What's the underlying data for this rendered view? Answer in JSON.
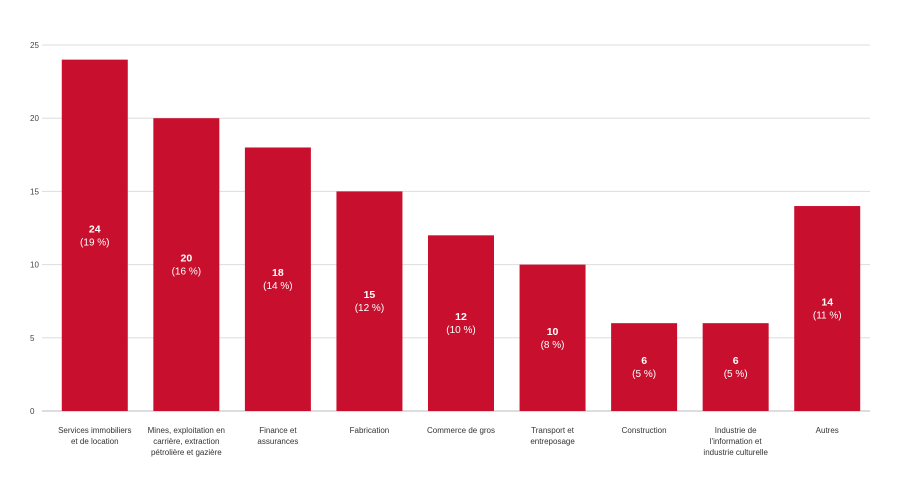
{
  "chart_data": {
    "type": "bar",
    "title": "",
    "xlabel": "",
    "ylabel": "",
    "ylim": [
      0,
      25
    ],
    "yticks": [
      "0",
      "5",
      "10",
      "15",
      "20",
      "25"
    ],
    "grid": true,
    "bar_color": "#c8102e",
    "grid_color": "#dddddd",
    "categories": [
      [
        "Services immobiliers",
        "et de location"
      ],
      [
        "Mines, exploitation en",
        "carrière, extraction",
        "pétrolière et gazière"
      ],
      [
        "Finance et",
        "assurances"
      ],
      [
        "Fabrication"
      ],
      [
        "Commerce de gros"
      ],
      [
        "Transport et",
        "entreposage"
      ],
      [
        "Construction"
      ],
      [
        "Industrie de",
        "l'information et",
        "industrie culturelle"
      ],
      [
        "Autres"
      ]
    ],
    "values": [
      24,
      20,
      18,
      15,
      12,
      10,
      6,
      6,
      14
    ],
    "value_labels": [
      "24",
      "20",
      "18",
      "15",
      "12",
      "10",
      "6",
      "6",
      "14"
    ],
    "percent_labels": [
      "(19 %)",
      "(16 %)",
      "(14 %)",
      "(12 %)",
      "(10 %)",
      "(8 %)",
      "(5 %)",
      "(5 %)",
      "(11 %)"
    ]
  }
}
